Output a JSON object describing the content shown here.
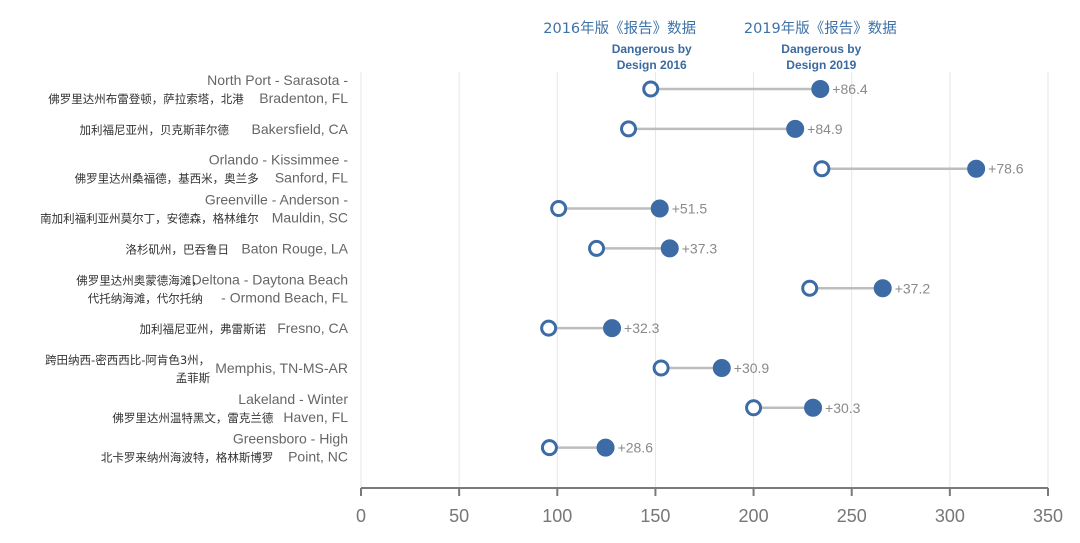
{
  "colors": {
    "accent": "#3d6ba5",
    "connector": "#bdbdbd",
    "grid": "#e6e6e6",
    "axis": "#7a7a7a",
    "label": "#666666",
    "delta": "#8a8a8a"
  },
  "legend": {
    "y2016": {
      "cn": "2016年版《报告》数据",
      "en_line1": "Dangerous by",
      "en_line2": "Design 2016"
    },
    "y2019": {
      "cn": "2019年版《报告》数据",
      "en_line1": "Dangerous by",
      "en_line2": "Design 2019"
    }
  },
  "chart_data": {
    "type": "dumbbell",
    "title": "",
    "xlabel": "",
    "ylabel": "",
    "xlim": [
      0,
      350
    ],
    "xticks": [
      0,
      50,
      100,
      150,
      200,
      250,
      300,
      350
    ],
    "grid": true,
    "series": [
      {
        "name": "Dangerous by Design 2016",
        "marker": "open-circle"
      },
      {
        "name": "Dangerous by Design 2019",
        "marker": "filled-circle"
      }
    ],
    "rows": [
      {
        "en": [
          "North Port - Sarasota -",
          "Bradenton, FL"
        ],
        "cn": [
          "佛罗里达州布雷登顿，萨拉索塔，北港"
        ],
        "v2016": 147.6,
        "v2019": 234.0,
        "delta": "+86.4"
      },
      {
        "en": [
          "Bakersfield, CA"
        ],
        "cn": [
          "加利福尼亚州，贝克斯菲尔德"
        ],
        "v2016": 136.3,
        "v2019": 221.2,
        "delta": "+84.9"
      },
      {
        "en": [
          "Orlando - Kissimmee -",
          "Sanford, FL"
        ],
        "cn": [
          "佛罗里达州桑福德，基西米，奥兰多"
        ],
        "v2016": 234.8,
        "v2019": 313.4,
        "delta": "+78.6"
      },
      {
        "en": [
          "Greenville - Anderson -",
          "Mauldin, SC"
        ],
        "cn": [
          "南加利福利亚州莫尔丁，安德森，格林维尔"
        ],
        "v2016": 100.7,
        "v2019": 152.2,
        "delta": "+51.5"
      },
      {
        "en": [
          "Baton Rouge, LA"
        ],
        "cn": [
          "洛杉矶州，巴吞鲁日"
        ],
        "v2016": 120.0,
        "v2019": 157.3,
        "delta": "+37.3"
      },
      {
        "en": [
          "Deltona - Daytona Beach",
          "- Ormond Beach, FL"
        ],
        "cn": [
          "佛罗里达州奥蒙德海滩，",
          "代托纳海滩，代尔托纳"
        ],
        "v2016": 228.6,
        "v2019": 265.8,
        "delta": "+37.2"
      },
      {
        "en": [
          "Fresno, CA"
        ],
        "cn": [
          "加利福尼亚州，弗雷斯诺"
        ],
        "v2016": 95.6,
        "v2019": 127.9,
        "delta": "+32.3"
      },
      {
        "en": [
          "Memphis, TN-MS-AR"
        ],
        "cn": [
          "跨田纳西-密西西比-阿肯色3州，",
          "孟菲斯"
        ],
        "v2016": 152.9,
        "v2019": 183.8,
        "delta": "+30.9"
      },
      {
        "en": [
          "Lakeland - Winter",
          "Haven, FL"
        ],
        "cn": [
          "佛罗里达州温特黑文，雷克兰德"
        ],
        "v2016": 200.0,
        "v2019": 230.3,
        "delta": "+30.3"
      },
      {
        "en": [
          "Greensboro - High",
          "Point, NC"
        ],
        "cn": [
          "北卡罗来纳州海波特，格林斯博罗"
        ],
        "v2016": 96.0,
        "v2019": 124.6,
        "delta": "+28.6"
      }
    ]
  }
}
